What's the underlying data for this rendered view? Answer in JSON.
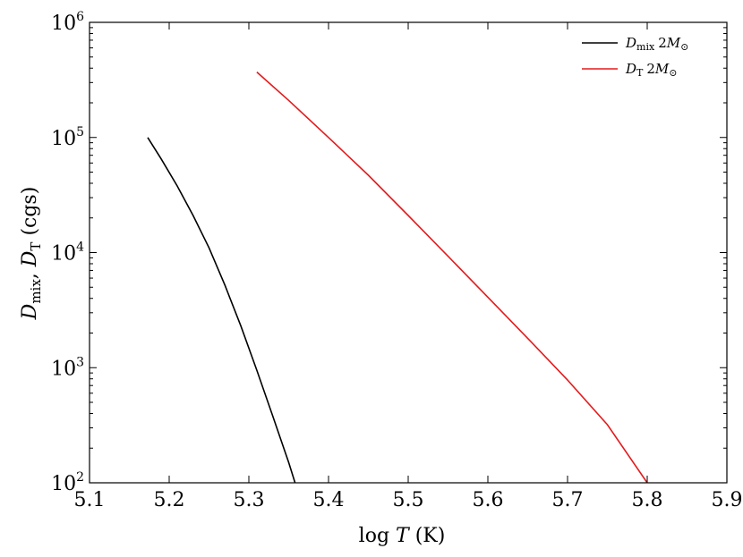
{
  "chart_data": {
    "type": "line",
    "xlabel": {
      "prefix": "log ",
      "var": "T",
      "suffix": " (K)"
    },
    "ylabel": {
      "var1": "D",
      "sub1": "mix",
      "sep": ", ",
      "var2": "D",
      "sub2": "T",
      "suffix": " (cgs)"
    },
    "xlim": [
      5.1,
      5.9
    ],
    "ylim": [
      100,
      1000000
    ],
    "yscale": "log",
    "x_ticks": [
      "5.1",
      "5.2",
      "5.3",
      "5.4",
      "5.5",
      "5.6",
      "5.7",
      "5.8",
      "5.9"
    ],
    "y_ticks": [
      {
        "base": "10",
        "exp": "2",
        "value": 100
      },
      {
        "base": "10",
        "exp": "3",
        "value": 1000
      },
      {
        "base": "10",
        "exp": "4",
        "value": 10000
      },
      {
        "base": "10",
        "exp": "5",
        "value": 100000
      },
      {
        "base": "10",
        "exp": "6",
        "value": 1000000
      }
    ],
    "grid": false,
    "legend_position": "top-right",
    "series": [
      {
        "name": "D_mix 2M_sun",
        "legend": {
          "var": "D",
          "sub": "mix",
          "coef": "2",
          "mass": "M",
          "massSub": "⊙"
        },
        "color": "#000000",
        "x": [
          5.173,
          5.19,
          5.21,
          5.23,
          5.25,
          5.27,
          5.29,
          5.31,
          5.33,
          5.35,
          5.358
        ],
        "y": [
          100000,
          65000,
          38000,
          21000,
          11000,
          5200,
          2300,
          950,
          380,
          150,
          100
        ]
      },
      {
        "name": "D_T 2M_sun",
        "legend": {
          "var": "D",
          "sub": "T",
          "coef": "2",
          "mass": "M",
          "massSub": "⊙"
        },
        "color": "#e31a1c",
        "x": [
          5.31,
          5.35,
          5.4,
          5.45,
          5.5,
          5.55,
          5.6,
          5.65,
          5.7,
          5.75,
          5.8
        ],
        "y": [
          370000,
          210000,
          100000,
          47000,
          21000,
          9300,
          4100,
          1800,
          780,
          320,
          100
        ]
      }
    ]
  }
}
